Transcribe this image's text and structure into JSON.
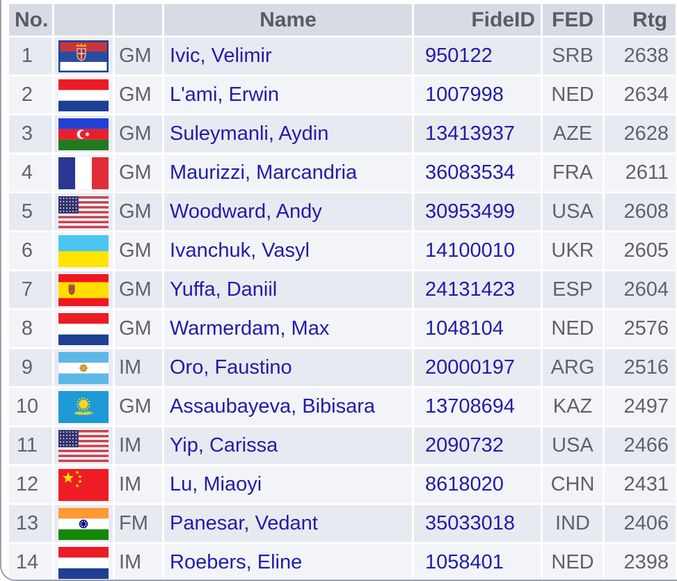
{
  "colors": {
    "header_bg": "#d8dbe3",
    "header_text": "#595c62",
    "row_odd": "#e8eaf1",
    "row_even": "#f3f4f8",
    "link_navy": "#211ca9",
    "text_gray": "#5f6267",
    "card_border": "#9ba0a8"
  },
  "table": {
    "headers": {
      "no": "No.",
      "name": "Name",
      "fideid": "FideID",
      "fed": "FED",
      "rtg": "Rtg"
    },
    "rows": [
      {
        "no": "1",
        "flag": "SRB",
        "title": "GM",
        "name": "Ivic, Velimir",
        "fideid": "950122",
        "fed": "SRB",
        "rtg": "2638"
      },
      {
        "no": "2",
        "flag": "NED",
        "title": "GM",
        "name": "L'ami, Erwin",
        "fideid": "1007998",
        "fed": "NED",
        "rtg": "2634"
      },
      {
        "no": "3",
        "flag": "AZE",
        "title": "GM",
        "name": "Suleymanli, Aydin",
        "fideid": "13413937",
        "fed": "AZE",
        "rtg": "2628"
      },
      {
        "no": "4",
        "flag": "FRA",
        "title": "GM",
        "name": "Maurizzi, Marcandria",
        "fideid": "36083534",
        "fed": "FRA",
        "rtg": "2611"
      },
      {
        "no": "5",
        "flag": "USA",
        "title": "GM",
        "name": "Woodward, Andy",
        "fideid": "30953499",
        "fed": "USA",
        "rtg": "2608"
      },
      {
        "no": "6",
        "flag": "UKR",
        "title": "GM",
        "name": "Ivanchuk, Vasyl",
        "fideid": "14100010",
        "fed": "UKR",
        "rtg": "2605"
      },
      {
        "no": "7",
        "flag": "ESP",
        "title": "GM",
        "name": "Yuffa, Daniil",
        "fideid": "24131423",
        "fed": "ESP",
        "rtg": "2604"
      },
      {
        "no": "8",
        "flag": "NED",
        "title": "GM",
        "name": "Warmerdam, Max",
        "fideid": "1048104",
        "fed": "NED",
        "rtg": "2576"
      },
      {
        "no": "9",
        "flag": "ARG",
        "title": "IM",
        "name": "Oro, Faustino",
        "fideid": "20000197",
        "fed": "ARG",
        "rtg": "2516"
      },
      {
        "no": "10",
        "flag": "KAZ",
        "title": "GM",
        "name": "Assaubayeva, Bibisara",
        "fideid": "13708694",
        "fed": "KAZ",
        "rtg": "2497"
      },
      {
        "no": "11",
        "flag": "USA",
        "title": "IM",
        "name": "Yip, Carissa",
        "fideid": "2090732",
        "fed": "USA",
        "rtg": "2466"
      },
      {
        "no": "12",
        "flag": "CHN",
        "title": "IM",
        "name": "Lu, Miaoyi",
        "fideid": "8618020",
        "fed": "CHN",
        "rtg": "2431"
      },
      {
        "no": "13",
        "flag": "IND",
        "title": "FM",
        "name": "Panesar, Vedant",
        "fideid": "35033018",
        "fed": "IND",
        "rtg": "2406"
      },
      {
        "no": "14",
        "flag": "NED",
        "title": "IM",
        "name": "Roebers, Eline",
        "fideid": "1058401",
        "fed": "NED",
        "rtg": "2398"
      }
    ]
  }
}
